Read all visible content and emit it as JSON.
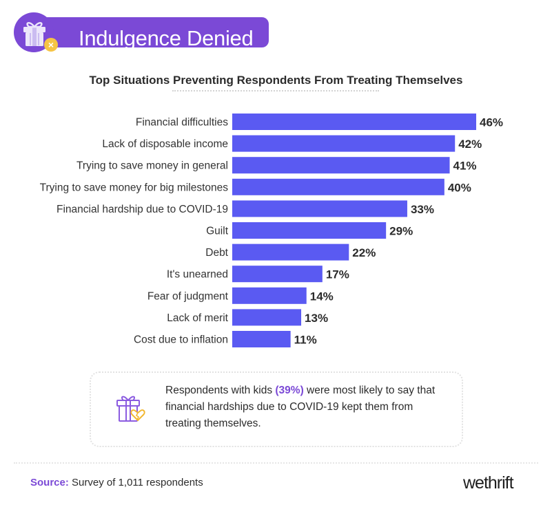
{
  "header": {
    "title": "Indulgence Denied",
    "icon": "gift-icon",
    "badge_icon": "close-icon",
    "badge_glyph": "×"
  },
  "chart_data": {
    "type": "bar",
    "orientation": "horizontal",
    "title": "Top Situations Preventing Respondents From Treating Themselves",
    "categories": [
      "Financial difficulties",
      "Lack of disposable income",
      "Trying to save money in general",
      "Trying to save money for big milestones",
      "Financial hardship due to COVID-19",
      "Guilt",
      "Debt",
      "It's unearned",
      "Fear of judgment",
      "Lack of merit",
      "Cost due to inflation"
    ],
    "values": [
      46,
      42,
      41,
      40,
      33,
      29,
      22,
      17,
      14,
      13,
      11
    ],
    "value_labels": [
      "46%",
      "42%",
      "41%",
      "40%",
      "33%",
      "29%",
      "22%",
      "17%",
      "14%",
      "13%",
      "11%"
    ],
    "xlim": [
      0,
      100
    ],
    "grid": false,
    "legend": "none",
    "bar_color": "#5a5af2"
  },
  "callout": {
    "icon": "broken-heart-gift-icon",
    "text_before": "Respondents with kids ",
    "highlight": "(39%)",
    "text_after": " were most likely to say that financial hardships due to COVID-19 kept them from treating themselves."
  },
  "footer": {
    "source_label": "Source:",
    "source_text": " Survey of 1,011 respondents",
    "logo": "wethrift"
  },
  "colors": {
    "accent": "#7b49d6",
    "bar": "#5a5af2",
    "badge": "#f6c445",
    "gift_light": "#ece6fb"
  }
}
